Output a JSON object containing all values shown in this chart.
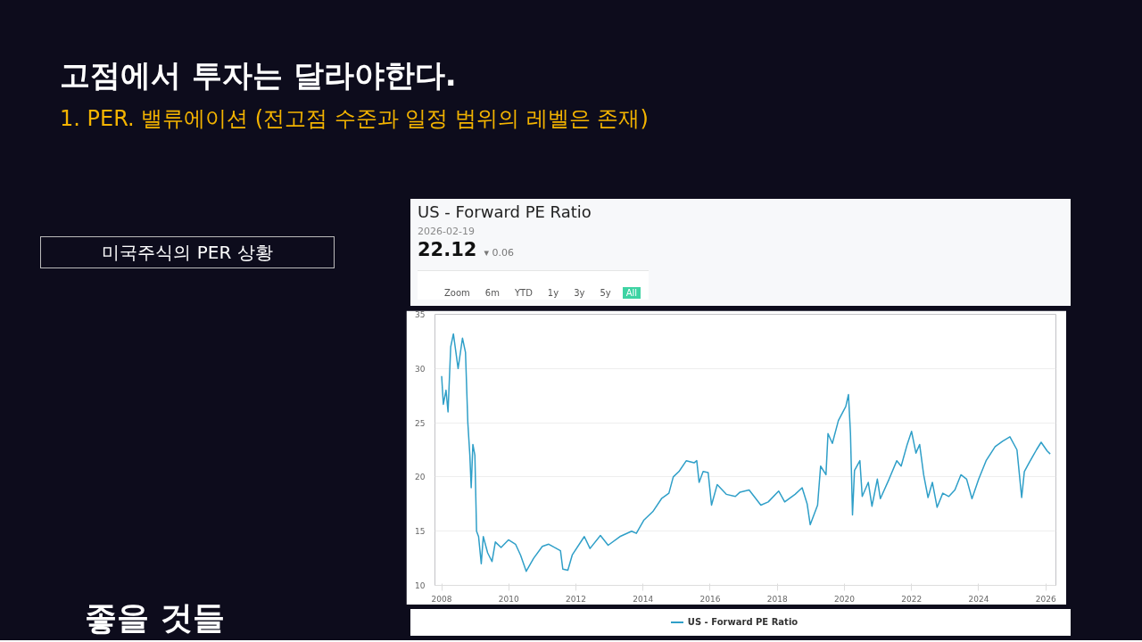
{
  "chart_data": {
    "type": "line",
    "title": "US - Forward PE Ratio",
    "subtitle": "2026-02-19",
    "annotations": [
      "고점에서 투자는 달라야한다.",
      "1. PER. 밸류에이션 (전고점 수준과 일정 범위의 레벨은 존재)",
      "미국주식의 PER 상황",
      "22.12",
      "▾ 0.06",
      "Zoom",
      "6m",
      "YTD",
      "1y",
      "3y",
      "5y",
      "All",
      "좋을 것들"
    ],
    "xlim": [
      2007.8,
      2026.3
    ],
    "xticks": [
      2008,
      2010,
      2012,
      2014,
      2016,
      2018,
      2020,
      2022,
      2024,
      2026
    ],
    "ylim": [
      10,
      35
    ],
    "yticks": [
      10,
      15,
      20,
      25,
      30,
      35
    ],
    "grid": "y",
    "legend": "bottom",
    "series": [
      {
        "name": "US - Forward PE Ratio",
        "color": "#2f9fc8",
        "x": [
          2008.0,
          2008.05,
          2008.13,
          2008.19,
          2008.27,
          2008.35,
          2008.49,
          2008.62,
          2008.71,
          2008.78,
          2008.84,
          2008.88,
          2008.93,
          2008.99,
          2009.04,
          2009.1,
          2009.18,
          2009.24,
          2009.37,
          2009.5,
          2009.6,
          2009.77,
          2009.99,
          2010.2,
          2010.35,
          2010.52,
          2010.74,
          2011.0,
          2011.19,
          2011.36,
          2011.54,
          2011.61,
          2011.76,
          2011.89,
          2012.25,
          2012.42,
          2012.73,
          2012.96,
          2013.31,
          2013.66,
          2013.8,
          2014.02,
          2014.29,
          2014.55,
          2014.77,
          2014.9,
          2015.07,
          2015.29,
          2015.52,
          2015.6,
          2015.67,
          2015.79,
          2015.94,
          2016.04,
          2016.21,
          2016.48,
          2016.75,
          2016.89,
          2017.16,
          2017.51,
          2017.73,
          2018.04,
          2018.22,
          2018.53,
          2018.74,
          2018.89,
          2018.98,
          2019.2,
          2019.29,
          2019.45,
          2019.51,
          2019.64,
          2019.82,
          2020.04,
          2020.12,
          2020.18,
          2020.24,
          2020.3,
          2020.46,
          2020.53,
          2020.71,
          2020.82,
          2020.98,
          2021.07,
          2021.33,
          2021.56,
          2021.69,
          2021.87,
          2022.0,
          2022.13,
          2022.24,
          2022.36,
          2022.49,
          2022.62,
          2022.76,
          2022.93,
          2023.11,
          2023.29,
          2023.47,
          2023.64,
          2023.8,
          2024.0,
          2024.22,
          2024.49,
          2024.71,
          2024.93,
          2025.14,
          2025.28,
          2025.36,
          2025.5,
          2025.72,
          2025.86,
          2026.04,
          2026.13
        ],
        "values": [
          29.3,
          26.7,
          28,
          26,
          32,
          33.2,
          30,
          32.8,
          31.5,
          25,
          22,
          19,
          23,
          22,
          15,
          14.5,
          12,
          14.5,
          13,
          12.2,
          14,
          13.5,
          14.2,
          13.8,
          12.8,
          11.3,
          12.5,
          13.6,
          13.8,
          13.5,
          13.2,
          11.5,
          11.4,
          12.8,
          14.5,
          13.4,
          14.6,
          13.7,
          14.5,
          15,
          14.8,
          16,
          16.8,
          18,
          18.5,
          20,
          20.5,
          21.5,
          21.3,
          21.5,
          19.5,
          20.5,
          20.4,
          17.4,
          19.3,
          18.4,
          18.2,
          18.6,
          18.8,
          17.4,
          17.7,
          18.7,
          17.7,
          18.4,
          19,
          17.5,
          15.6,
          17.4,
          21,
          20.2,
          24,
          23.1,
          25.2,
          26.5,
          27.6,
          24,
          16.5,
          20.6,
          21.5,
          18.2,
          19.5,
          17.3,
          19.8,
          18,
          19.8,
          21.5,
          21,
          23,
          24.2,
          22.2,
          23,
          20.2,
          18.1,
          19.5,
          17.2,
          18.5,
          18.2,
          18.8,
          20.2,
          19.8,
          18,
          19.8,
          21.5,
          22.8,
          23.3,
          23.7,
          22.5,
          18.1,
          20.5,
          21.3,
          22.5,
          23.2,
          22.4,
          22.12
        ]
      }
    ]
  }
}
